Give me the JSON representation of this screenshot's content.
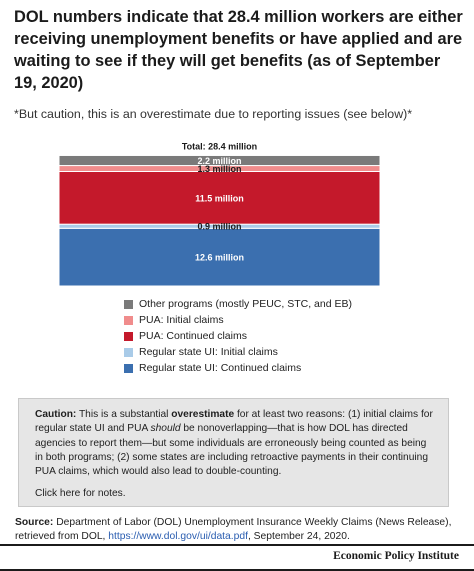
{
  "title": "DOL numbers indicate that 28.4 million workers are either receiving unemployment benefits or have applied and are waiting to see if they will get benefits (as of September 19, 2020)",
  "subtitle": "*But caution, this is an overestimate due to reporting issues (see below)*",
  "chart_data": {
    "type": "bar",
    "stacked": true,
    "total_label": "Total: 28.4 million",
    "total": 28.4,
    "unit": "million",
    "series": [
      {
        "name": "Regular state UI: Continued claims",
        "value": 12.6,
        "label": "12.6 million",
        "color": "#3b6faf",
        "label_color": "#ffffff"
      },
      {
        "name": "Regular state UI: Initial claims",
        "value": 0.9,
        "label": "0.9 million",
        "color": "#a9cbe8",
        "label_color": "#1a1a1a"
      },
      {
        "name": "PUA: Continued claims",
        "value": 11.5,
        "label": "11.5 million",
        "color": "#c4192b",
        "label_color": "#ffffff"
      },
      {
        "name": "PUA: Initial claims",
        "value": 1.3,
        "label": "1.3 million",
        "color": "#f08c8c",
        "label_color": "#1a1a1a"
      },
      {
        "name": "Other programs (mostly PEUC, STC, and EB)",
        "value": 2.2,
        "label": "2.2 million",
        "color": "#7a7a7a",
        "label_color": "#ffffff"
      }
    ],
    "legend_position": "bottom",
    "grid": false
  },
  "legend": [
    {
      "label": "Other programs (mostly PEUC, STC, and EB)",
      "color": "#7a7a7a"
    },
    {
      "label": "PUA: Initial claims",
      "color": "#f08c8c"
    },
    {
      "label": "PUA: Continued claims",
      "color": "#c4192b"
    },
    {
      "label": "Regular state UI: Initial claims",
      "color": "#a9cbe8"
    },
    {
      "label": "Regular state UI: Continued claims",
      "color": "#3b6faf"
    }
  ],
  "caution": {
    "lead": "Caution:",
    "text1": " This is a substantial ",
    "emph": "overestimate",
    "text2": " for at least two reasons: (1) initial claims for regular state UI and PUA ",
    "should": "should",
    "text3": " be nonoverlapping—that is how DOL has directed agencies to report them—but some individuals are erroneously being counted as being in both programs; (2) some states are including  retroactive payments in their continuing PUA claims, which would also lead to double-counting.",
    "notes_link": "Click here for notes."
  },
  "source": {
    "lead": "Source:",
    "text": " Department of Labor (DOL) Unemployment Insurance Weekly Claims (News Release), retrieved from DOL, ",
    "url": "https://www.dol.gov/ui/data.pdf",
    "date": ", September 24, 2020."
  },
  "footer": {
    "brand": "Economic Policy Institute"
  }
}
